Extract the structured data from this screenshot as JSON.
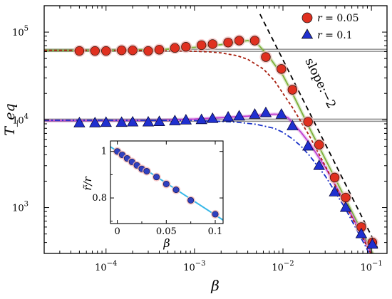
{
  "chart_data": [
    {
      "type": "line",
      "xlabel": "β",
      "ylabel": "T_eq",
      "x_scale": "log",
      "y_scale": "log",
      "xlim": [
        2e-05,
        0.15
      ],
      "ylim": [
        300,
        200000
      ],
      "x_ticks": [
        {
          "value": 0.0001,
          "base": "10",
          "exp": "−4"
        },
        {
          "value": 0.001,
          "base": "10",
          "exp": "−3"
        },
        {
          "value": 0.01,
          "base": "10",
          "exp": "−2"
        },
        {
          "value": 0.1,
          "base": "10",
          "exp": "−1"
        }
      ],
      "y_ticks": [
        {
          "value": 1000,
          "base": "10",
          "exp": "3"
        },
        {
          "value": 10000,
          "base": "10",
          "exp": "4"
        },
        {
          "value": 100000,
          "base": "10",
          "exp": "5"
        }
      ],
      "legend": {
        "position": "top-right",
        "entries": [
          {
            "prefix": "r",
            "text": " = 0.05",
            "marker": "circle",
            "color": "#e03020"
          },
          {
            "prefix": "r",
            "text": " = 0.1",
            "marker": "triangle",
            "color": "#2030d0"
          }
        ]
      },
      "annotation": "slope:−2",
      "hlines": [
        {
          "y": 62000,
          "color": "#8c8c8c"
        },
        {
          "y": 9900,
          "color": "#8c8c8c"
        }
      ],
      "series": [
        {
          "style": "marker-circle",
          "color": "#e03020",
          "x": [
            5e-05,
            7.5e-05,
            0.0001,
            0.00015,
            0.0002,
            0.0003,
            0.0004,
            0.0006,
            0.0008,
            0.0012,
            0.0016,
            0.0024,
            0.0032,
            0.0048,
            0.0064,
            0.0096,
            0.0128,
            0.0192,
            0.0256,
            0.0384,
            0.0512,
            0.0768,
            0.1024
          ],
          "y": [
            61000,
            61000,
            61000,
            62000,
            62000,
            61000,
            63000,
            66000,
            68000,
            71000,
            73000,
            76000,
            80000,
            80000,
            52000,
            38000,
            22000,
            9500,
            5200,
            2200,
            1300,
            600,
            400
          ]
        },
        {
          "style": "marker-triangle",
          "color": "#2030d0",
          "x": [
            5e-05,
            7.5e-05,
            0.0001,
            0.00015,
            0.0002,
            0.0003,
            0.0004,
            0.0006,
            0.0008,
            0.0012,
            0.0016,
            0.0024,
            0.0032,
            0.0048,
            0.0064,
            0.0096,
            0.0128,
            0.0192,
            0.0256,
            0.0384,
            0.0512,
            0.0768,
            0.1024
          ],
          "y": [
            9200,
            9200,
            9300,
            9300,
            9400,
            9400,
            9500,
            9700,
            9900,
            10000,
            10300,
            10700,
            11000,
            11500,
            12000,
            11500,
            8500,
            5000,
            3000,
            1500,
            1000,
            500,
            380
          ]
        },
        {
          "style": "solid",
          "color": "#7db03a",
          "x": [
            2e-05,
            0.0001,
            0.0004,
            0.001,
            0.002,
            0.003,
            0.004,
            0.005,
            0.006,
            0.007,
            0.008,
            0.01,
            0.0128,
            0.02,
            0.03,
            0.05,
            0.07,
            0.1,
            0.12
          ],
          "y": [
            62000,
            62000,
            63000,
            67000,
            72000,
            77000,
            80000,
            76000,
            62000,
            52000,
            43000,
            32000,
            20000,
            8000,
            3600,
            1300,
            660,
            320,
            230
          ]
        },
        {
          "style": "solid",
          "color": "#c040d0",
          "x": [
            2e-05,
            0.0001,
            0.0004,
            0.001,
            0.002,
            0.004,
            0.006,
            0.008,
            0.0096,
            0.0115,
            0.0128,
            0.016,
            0.02,
            0.03,
            0.05,
            0.07,
            0.1,
            0.12
          ],
          "y": [
            9800,
            9800,
            9900,
            10200,
            10600,
            11000,
            11400,
            11600,
            11500,
            10500,
            9200,
            7200,
            5400,
            2900,
            1150,
            600,
            300,
            230
          ]
        },
        {
          "style": "dashed",
          "color": "#a82010",
          "x": [
            2e-05,
            0.0001,
            0.0003,
            0.0007,
            0.001,
            0.0015,
            0.002,
            0.003,
            0.004,
            0.006,
            0.008,
            0.01,
            0.013,
            0.016,
            0.02,
            0.03,
            0.05,
            0.07,
            0.1,
            0.12
          ],
          "y": [
            62000,
            62000,
            61500,
            61000,
            60500,
            59500,
            58000,
            54000,
            49000,
            38000,
            28000,
            20000,
            13500,
            9500,
            6500,
            3000,
            1100,
            580,
            290,
            210
          ]
        },
        {
          "style": "dashdot",
          "color": "#1830c8",
          "x": [
            2e-05,
            0.0001,
            0.0005,
            0.001,
            0.002,
            0.003,
            0.005,
            0.008,
            0.01,
            0.013,
            0.016,
            0.02,
            0.03,
            0.05,
            0.07,
            0.1,
            0.12
          ],
          "y": [
            9900,
            9900,
            9850,
            9800,
            9600,
            9400,
            8900,
            8000,
            7200,
            6000,
            5000,
            3900,
            2300,
            1000,
            530,
            270,
            200
          ]
        },
        {
          "style": "dashed-black",
          "color": "#000000",
          "x": [
            0.0055,
            0.12
          ],
          "y": [
            160000,
            330
          ]
        }
      ]
    },
    {
      "type": "line",
      "position": "inset",
      "xlabel": "β",
      "ylabel": "r̃/r",
      "xlim": [
        -0.007,
        0.108
      ],
      "ylim": [
        0.69,
        1.045
      ],
      "x_ticks": [
        "0",
        "0.05",
        "0.1"
      ],
      "y_ticks": [
        "1",
        "0.8"
      ],
      "series": [
        {
          "style": "marker-circle",
          "color": "#c01010",
          "x": [
            0.0,
            0.005,
            0.01,
            0.015,
            0.02,
            0.025,
            0.03,
            0.04,
            0.05,
            0.06,
            0.075,
            0.1
          ],
          "y": [
            1.0,
            0.985,
            0.97,
            0.955,
            0.94,
            0.925,
            0.915,
            0.89,
            0.86,
            0.835,
            0.79,
            0.73
          ]
        },
        {
          "style": "solid",
          "color": "#38b8e8",
          "x": [
            -0.007,
            0.108
          ],
          "y": [
            1.02,
            0.705
          ]
        }
      ]
    }
  ]
}
